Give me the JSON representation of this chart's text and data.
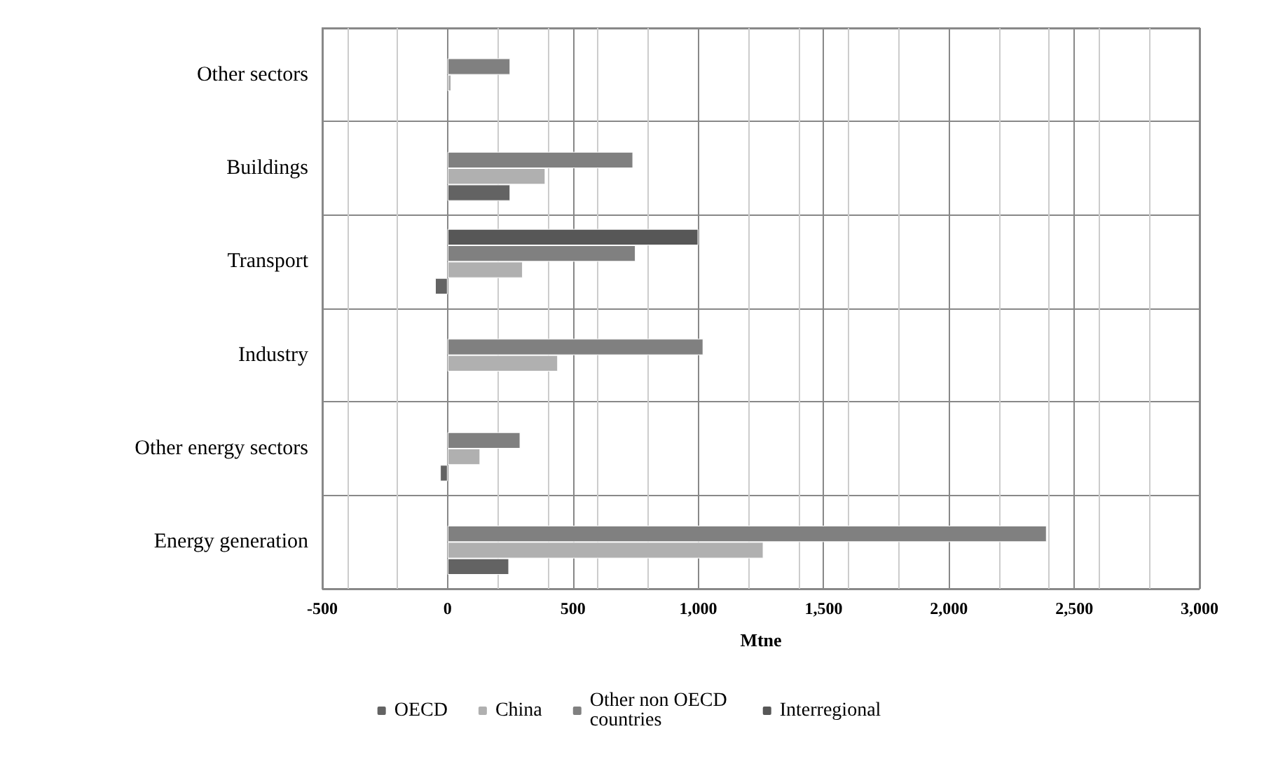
{
  "chart_data": {
    "type": "bar",
    "orientation": "horizontal",
    "xlabel": "Mtne",
    "categories": [
      "Other sectors",
      "Buildings",
      "Transport",
      "Industry",
      "Other energy sectors",
      "Energy generation"
    ],
    "series": [
      {
        "name": "OECD",
        "color": "#636363",
        "values": [
          null,
          250,
          -50,
          null,
          -30,
          245
        ]
      },
      {
        "name": "China",
        "color": "#b0b0b0",
        "values": [
          15,
          390,
          300,
          440,
          130,
          1260
        ]
      },
      {
        "name": "Other non OECD countries",
        "color": "#808080",
        "values": [
          250,
          740,
          750,
          1020,
          290,
          2390
        ]
      },
      {
        "name": "Interregional",
        "color": "#575757",
        "values": [
          null,
          null,
          1000,
          null,
          null,
          null
        ]
      }
    ],
    "xlim": [
      -500,
      3000
    ],
    "xticks": [
      -500,
      0,
      500,
      {
        "value": 1000,
        "label": "1,000"
      },
      {
        "value": 1500,
        "label": "1,500"
      },
      {
        "value": 2000,
        "label": "2,000"
      },
      {
        "value": 2500,
        "label": "2,500"
      },
      {
        "value": 3000,
        "label": "3,000"
      }
    ],
    "grid": true,
    "legend": "bottom"
  }
}
